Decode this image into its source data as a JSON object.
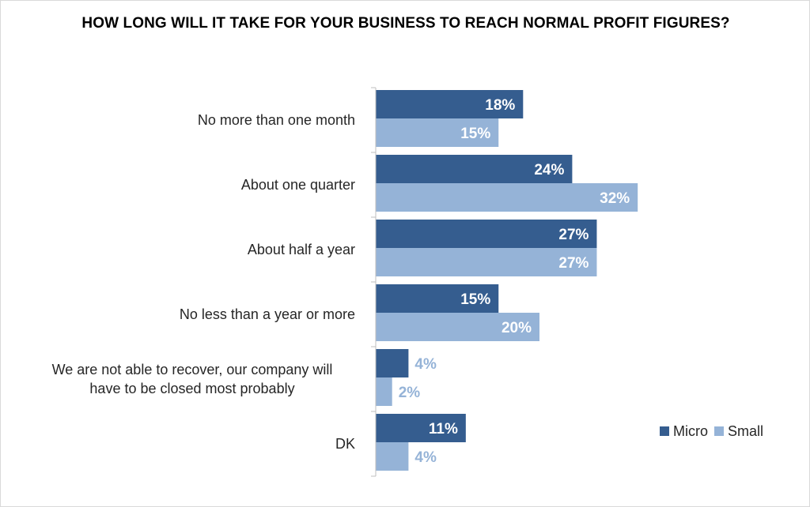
{
  "chart_data": {
    "type": "bar",
    "orientation": "horizontal",
    "title": "HOW LONG WILL IT TAKE FOR YOUR BUSINESS TO REACH NORMAL PROFIT FIGURES?",
    "categories": [
      [
        "No more than one month"
      ],
      [
        "About one quarter"
      ],
      [
        "About half a year"
      ],
      [
        "No less than a year or more"
      ],
      [
        "We are not able to recover, our company will",
        "have to be closed most probably"
      ],
      [
        "DK"
      ]
    ],
    "series": [
      {
        "name": "Micro",
        "color": "#355d8f",
        "label_color": "#ffffff",
        "values": [
          18,
          24,
          27,
          15,
          4,
          11
        ],
        "labels": [
          "18%",
          "24%",
          "27%",
          "15%",
          "4%",
          "11%"
        ]
      },
      {
        "name": "Small",
        "color": "#95b3d7",
        "label_color": "#ffffff",
        "values": [
          15,
          32,
          27,
          20,
          2,
          4
        ],
        "labels": [
          "15%",
          "32%",
          "27%",
          "20%",
          "2%",
          "4%"
        ]
      }
    ],
    "small_value_label_color": "#95b3d7",
    "xlim": [
      0,
      40
    ],
    "grid": false,
    "legend_position": "bottom-right",
    "unit": "%"
  }
}
